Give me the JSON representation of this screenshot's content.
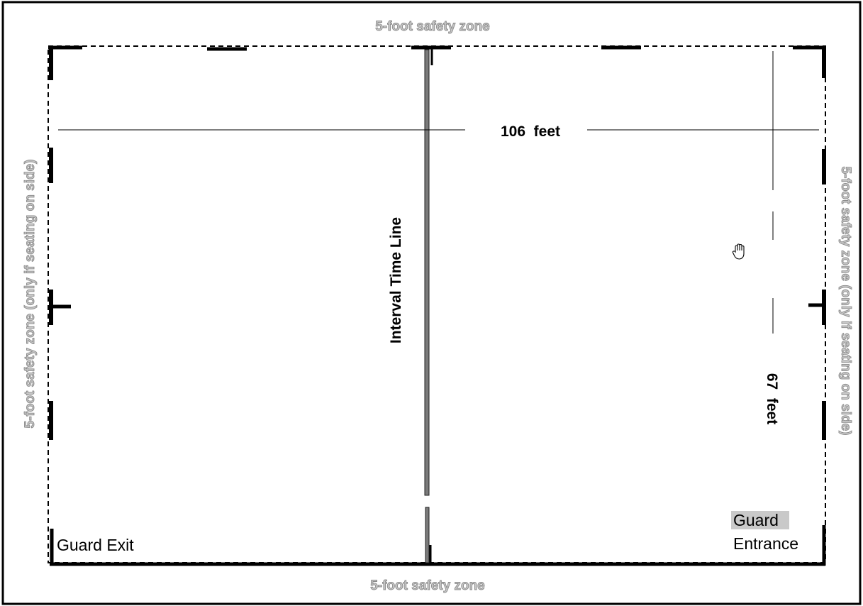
{
  "diagram": {
    "safety_zone_top": "5-foot safety zone",
    "safety_zone_bottom": "5-foot safety zone",
    "safety_zone_left": "5-foot safety zone (only if seating on side)",
    "safety_zone_right": "5-foot safety zone (only if seating on side)",
    "width_dimension": "106  feet",
    "height_dimension": "67  feet",
    "center_line_label": "Interval Time Line",
    "guard_exit_label": "Guard Exit",
    "guard_entrance_line1": "Guard",
    "guard_entrance_line2": "Entrance",
    "cursor_icon": "hand-cursor-icon"
  }
}
